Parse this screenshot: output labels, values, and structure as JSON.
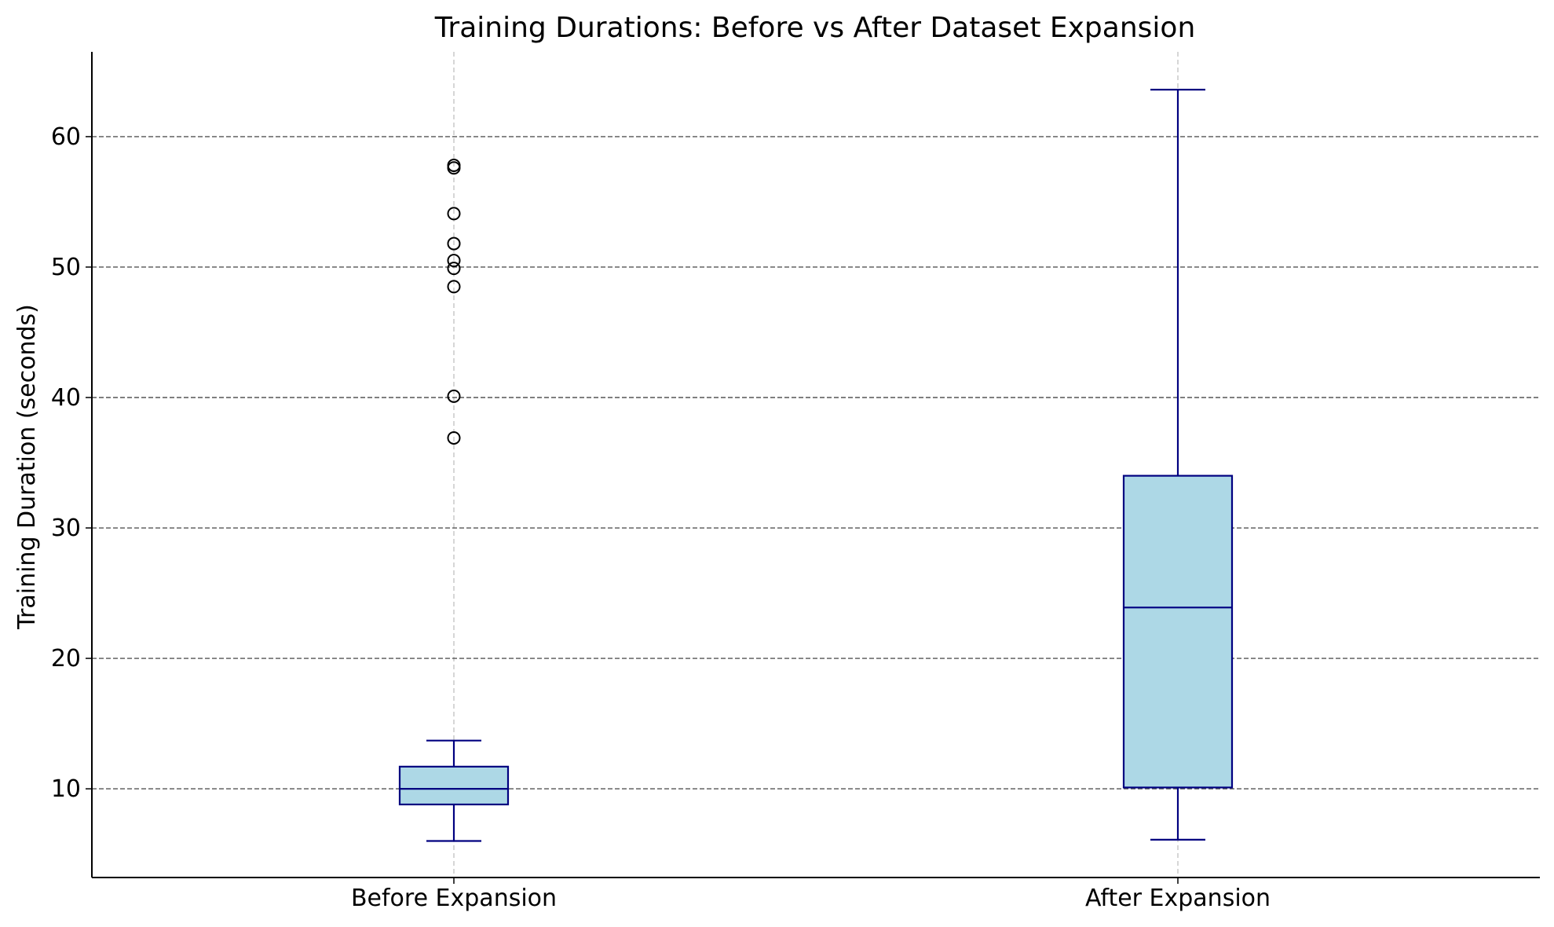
{
  "chart_data": {
    "type": "boxplot",
    "title": "Training Durations: Before vs After Dataset Expansion",
    "xlabel": "",
    "ylabel": "Training Duration (seconds)",
    "ylim": [
      3.2,
      66.5
    ],
    "yticks": [
      10,
      20,
      30,
      40,
      50,
      60
    ],
    "grid": {
      "y": true,
      "x": true
    },
    "categories": [
      "Before Expansion",
      "After Expansion"
    ],
    "boxes": [
      {
        "category": "Before Expansion",
        "whisker_low": 6.0,
        "q1": 8.8,
        "median": 10.0,
        "q3": 11.7,
        "whisker_high": 13.7,
        "outliers": [
          57.8,
          57.6,
          54.1,
          51.8,
          50.5,
          49.9,
          48.5,
          40.1,
          36.9
        ]
      },
      {
        "category": "After Expansion",
        "whisker_low": 6.1,
        "q1": 10.1,
        "median": 23.9,
        "q3": 34.0,
        "whisker_high": 63.6,
        "outliers": []
      }
    ],
    "colors": {
      "box_fill": "#add8e6",
      "box_edge": "#000080",
      "grid_major": "#555555",
      "grid_minor": "#bbbbbb",
      "axis": "#000000"
    }
  }
}
